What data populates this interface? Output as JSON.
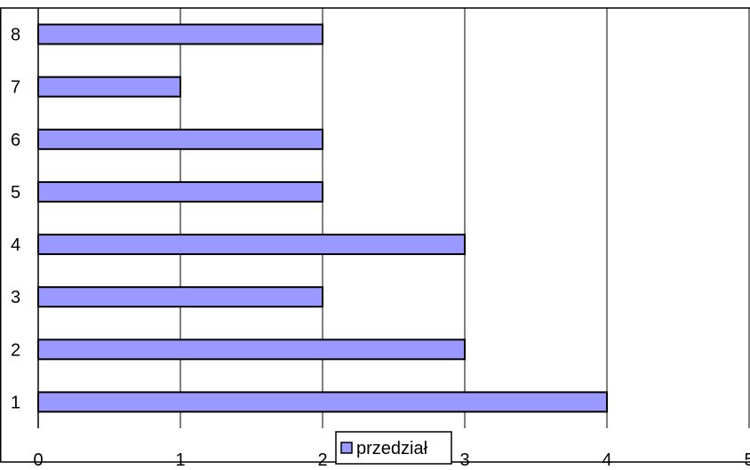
{
  "chart_data": {
    "type": "bar",
    "orientation": "horizontal",
    "categories": [
      "1",
      "2",
      "3",
      "4",
      "5",
      "6",
      "7",
      "8"
    ],
    "series": [
      {
        "name": "przedział",
        "values": [
          4,
          3,
          2,
          3,
          2,
          2,
          1,
          2
        ],
        "color": "#9999ff"
      }
    ],
    "xlim": [
      0,
      5
    ],
    "x_ticks": [
      "0",
      "1",
      "2",
      "3",
      "4",
      "5"
    ],
    "grid": "vertical major gridlines",
    "legend": "bottom-center",
    "title": "",
    "xlabel": "",
    "ylabel": ""
  }
}
